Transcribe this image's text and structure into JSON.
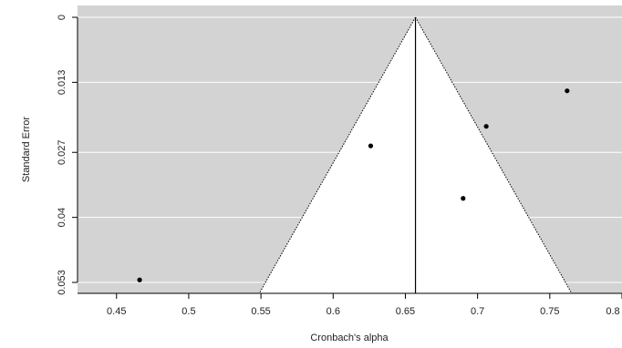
{
  "chart_data": {
    "type": "scatter",
    "subtype": "funnel-plot",
    "title": "",
    "xlabel": "Cronbach's alpha",
    "ylabel": "Standard Error",
    "xlim": [
      0.423,
      0.8
    ],
    "ylim": [
      0,
      0.0553
    ],
    "y_reversed": true,
    "x_ticks": [
      0.45,
      0.5,
      0.55,
      0.6,
      0.65,
      0.7,
      0.75,
      0.8
    ],
    "x_tick_labels": [
      "0.45",
      "0.5",
      "0.55",
      "0.6",
      "0.65",
      "0.7",
      "0.75",
      "0.8"
    ],
    "y_ticks": [
      0,
      0.013,
      0.027,
      0.04,
      0.053
    ],
    "y_tick_labels": [
      "0",
      "0.013",
      "0.027",
      "0.04",
      "0.053"
    ],
    "grid": true,
    "center_estimate": 0.657,
    "funnel_multiplier": 1.96,
    "points": [
      {
        "x": 0.466,
        "y": 0.0525
      },
      {
        "x": 0.626,
        "y": 0.0257
      },
      {
        "x": 0.69,
        "y": 0.0362
      },
      {
        "x": 0.706,
        "y": 0.0218
      },
      {
        "x": 0.762,
        "y": 0.0147
      }
    ],
    "colors": {
      "outside_region": "#d3d3d3",
      "funnel_region": "#ffffff",
      "grid": "#ffffff",
      "points": "#000000",
      "lines": "#000000"
    }
  }
}
